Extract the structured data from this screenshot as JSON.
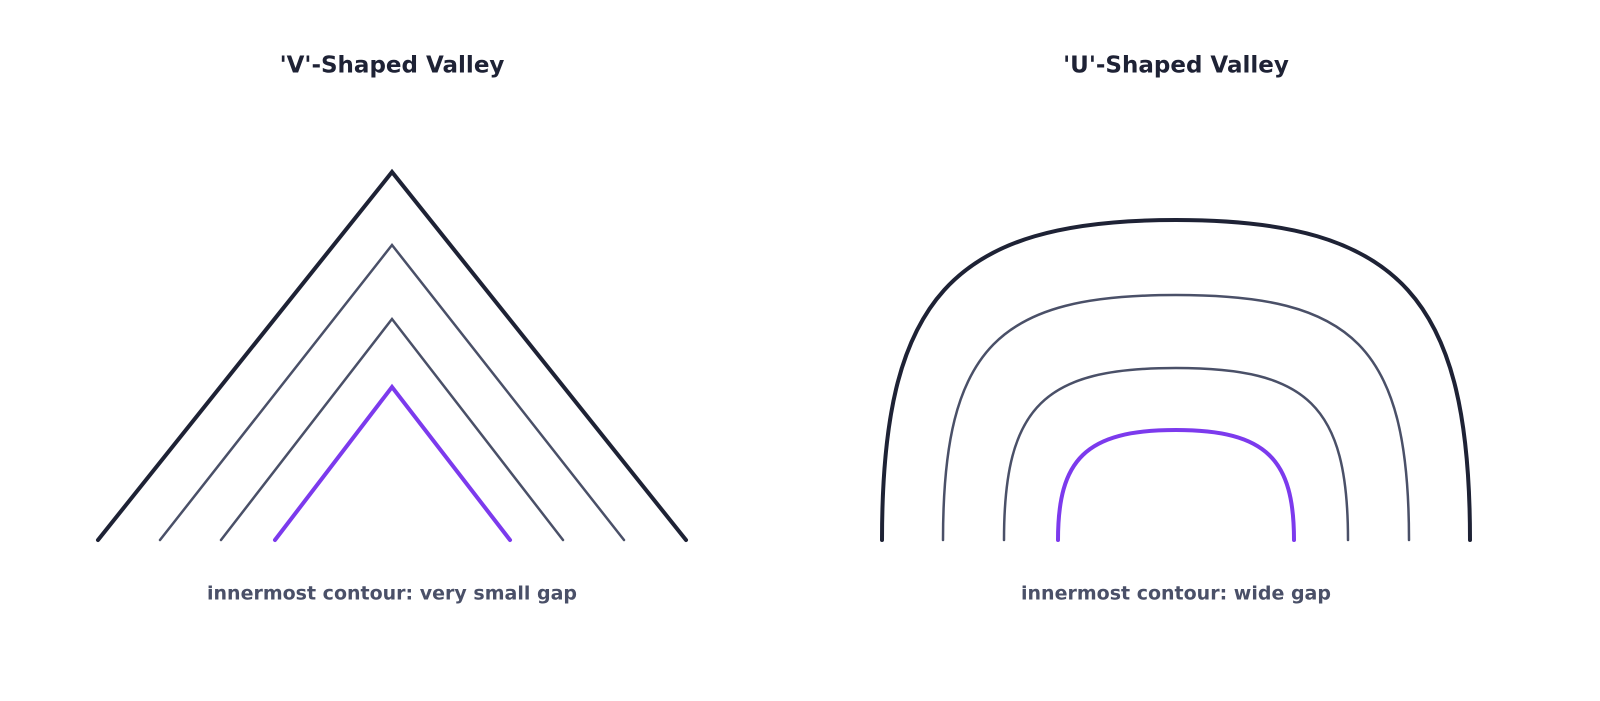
{
  "panels": [
    {
      "title": "'V'-Shaped Valley",
      "caption": "innermost contour: very small gap"
    },
    {
      "title": "'U'-Shaped Valley",
      "caption": "innermost contour: wide gap"
    }
  ]
}
